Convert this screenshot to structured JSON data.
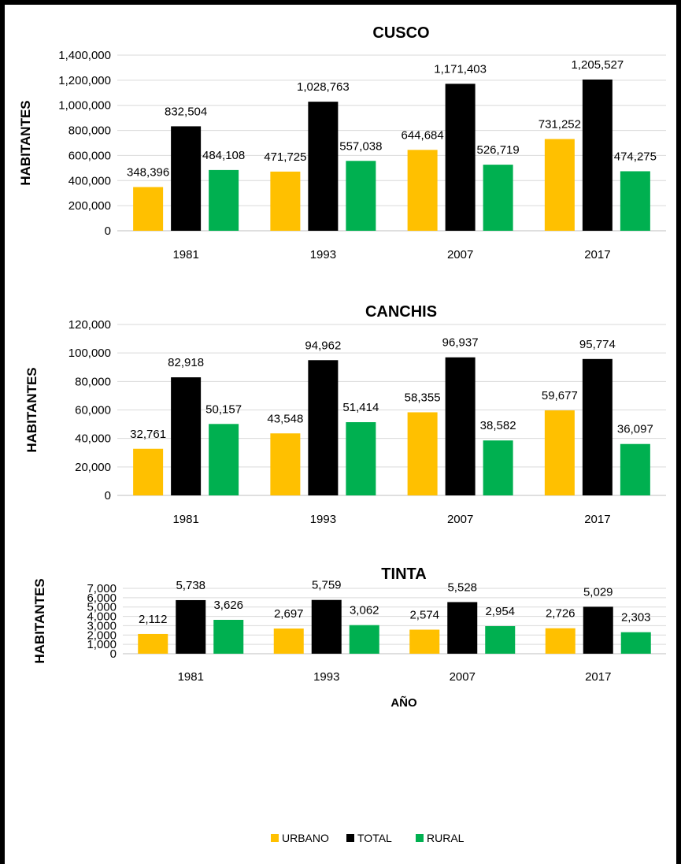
{
  "chart_data": [
    {
      "type": "bar",
      "title": "CUSCO",
      "ylabel": "HABITANTES",
      "xlabel": "",
      "categories": [
        "1981",
        "1993",
        "2007",
        "2017"
      ],
      "ylim": [
        0,
        1400000
      ],
      "yticks": [
        0,
        200000,
        400000,
        600000,
        800000,
        1000000,
        1200000,
        1400000
      ],
      "ytick_labels": [
        "0",
        "200,000",
        "400,000",
        "600,000",
        "800,000",
        "1,000,000",
        "1,200,000",
        "1,400,000"
      ],
      "series": [
        {
          "name": "URBANO",
          "values": [
            348396,
            471725,
            644684,
            731252
          ],
          "labels": [
            "348,396",
            "471,725",
            "644,684",
            "731,252"
          ]
        },
        {
          "name": "TOTAL",
          "values": [
            832504,
            1028763,
            1171403,
            1205527
          ],
          "labels": [
            "832,504",
            "1,028,763",
            "1,171,403",
            "1,205,527"
          ]
        },
        {
          "name": "RURAL",
          "values": [
            484108,
            557038,
            526719,
            474275
          ],
          "labels": [
            "484,108",
            "557,038",
            "526,719",
            "474,275"
          ]
        }
      ],
      "grid": true
    },
    {
      "type": "bar",
      "title": "CANCHIS",
      "ylabel": "HABITANTES",
      "xlabel": "",
      "categories": [
        "1981",
        "1993",
        "2007",
        "2017"
      ],
      "ylim": [
        0,
        120000
      ],
      "yticks": [
        0,
        20000,
        40000,
        60000,
        80000,
        100000,
        120000
      ],
      "ytick_labels": [
        "0",
        "20,000",
        "40,000",
        "60,000",
        "80,000",
        "100,000",
        "120,000"
      ],
      "series": [
        {
          "name": "URBANO",
          "values": [
            32761,
            43548,
            58355,
            59677
          ],
          "labels": [
            "32,761",
            "43,548",
            "58,355",
            "59,677"
          ]
        },
        {
          "name": "TOTAL",
          "values": [
            82918,
            94962,
            96937,
            95774
          ],
          "labels": [
            "82,918",
            "94,962",
            "96,937",
            "95,774"
          ]
        },
        {
          "name": "RURAL",
          "values": [
            50157,
            51414,
            38582,
            36097
          ],
          "labels": [
            "50,157",
            "51,414",
            "38,582",
            "36,097"
          ]
        }
      ],
      "grid": true
    },
    {
      "type": "bar",
      "title": "TINTA",
      "ylabel": "HABITANTES",
      "xlabel": "AÑO",
      "categories": [
        "1981",
        "1993",
        "2007",
        "2017"
      ],
      "ylim": [
        0,
        7000
      ],
      "yticks": [
        0,
        1000,
        2000,
        3000,
        4000,
        5000,
        6000,
        7000
      ],
      "ytick_labels": [
        "0",
        "1,000",
        "2,000",
        "3,000",
        "4,000",
        "5,000",
        "6,000",
        "7,000"
      ],
      "series": [
        {
          "name": "URBANO",
          "values": [
            2112,
            2697,
            2574,
            2726
          ],
          "labels": [
            "2,112",
            "2,697",
            "2,574",
            "2,726"
          ]
        },
        {
          "name": "TOTAL",
          "values": [
            5738,
            5759,
            5528,
            5029
          ],
          "labels": [
            "5,738",
            "5,759",
            "5,528",
            "5,029"
          ]
        },
        {
          "name": "RURAL",
          "values": [
            3626,
            3062,
            2954,
            2303
          ],
          "labels": [
            "3,626",
            "3,062",
            "2,954",
            "2,303"
          ]
        }
      ],
      "grid": true
    }
  ],
  "legend": {
    "placement": "bottom",
    "items": [
      {
        "label": "URBANO",
        "color": "#ffc000"
      },
      {
        "label": "TOTAL",
        "color": "#000000"
      },
      {
        "label": "RURAL",
        "color": "#00b050"
      }
    ]
  },
  "colors": {
    "URBANO": "#ffc000",
    "TOTAL": "#000000",
    "RURAL": "#00b050"
  }
}
